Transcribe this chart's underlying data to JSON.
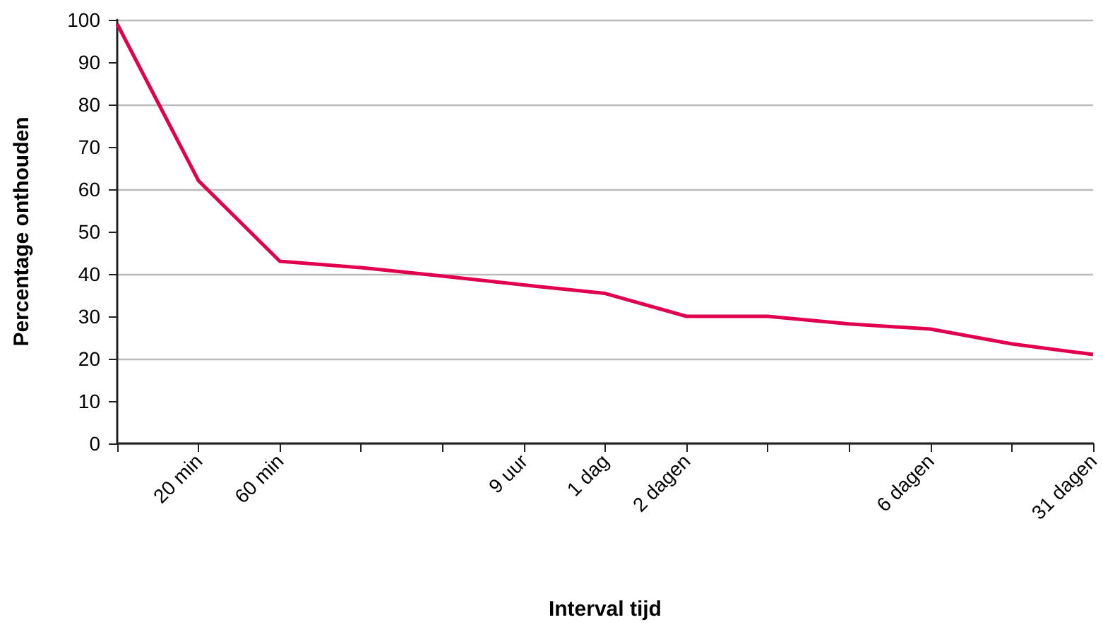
{
  "chart_data": {
    "type": "line",
    "xlabel": "Interval tijd",
    "ylabel": "Percentage onthouden",
    "categories": [
      null,
      "20 min",
      "60 min",
      null,
      null,
      "9 uur",
      "1 dag",
      "2 dagen",
      null,
      null,
      "6 dagen",
      null,
      "31 dagen"
    ],
    "series": [
      {
        "color": "#e0004d",
        "values": [
          99,
          62,
          43,
          41.5,
          39.5,
          37.4,
          35.4,
          30,
          30,
          28.2,
          27,
          23.5,
          21
        ]
      }
    ],
    "ylim": [
      0,
      100
    ],
    "yticks": [
      0,
      10,
      20,
      30,
      40,
      50,
      60,
      70,
      80,
      90,
      100
    ],
    "grid": "y",
    "marker": "none",
    "line_style": "solid"
  }
}
